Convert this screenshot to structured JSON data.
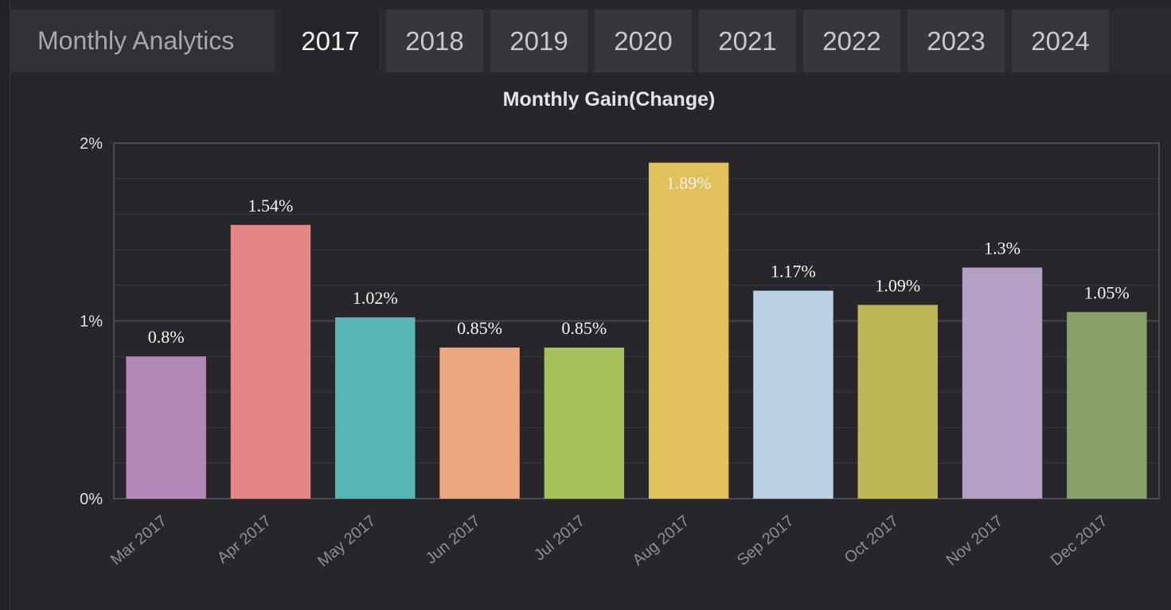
{
  "header": {
    "title": "Monthly Analytics",
    "tabs": [
      {
        "label": "2017",
        "active": true
      },
      {
        "label": "2018",
        "active": false
      },
      {
        "label": "2019",
        "active": false
      },
      {
        "label": "2020",
        "active": false
      },
      {
        "label": "2021",
        "active": false
      },
      {
        "label": "2022",
        "active": false
      },
      {
        "label": "2023",
        "active": false
      },
      {
        "label": "2024",
        "active": false
      }
    ]
  },
  "chart_data": {
    "type": "bar",
    "title": "Monthly Gain(Change)",
    "xlabel": "",
    "ylabel": "",
    "categories": [
      "Mar 2017",
      "Apr 2017",
      "May 2017",
      "Jun 2017",
      "Jul 2017",
      "Aug 2017",
      "Sep 2017",
      "Oct 2017",
      "Nov 2017",
      "Dec 2017"
    ],
    "values": [
      0.8,
      1.54,
      1.02,
      0.85,
      0.85,
      1.89,
      1.17,
      1.09,
      1.3,
      1.05
    ],
    "data_labels": [
      "0.8%",
      "1.54%",
      "1.02%",
      "0.85%",
      "0.85%",
      "1.89%",
      "1.17%",
      "1.09%",
      "1.3%",
      "1.05%"
    ],
    "yticks": [
      0,
      1,
      2
    ],
    "ytick_labels": [
      "0%",
      "1%",
      "2%"
    ],
    "ylim": [
      0,
      2
    ],
    "grid": true,
    "colors": [
      "#b488b8",
      "#e48784",
      "#58b4b5",
      "#eaa880",
      "#a8c05c",
      "#e2c05c",
      "#bbd2e6",
      "#bcb654",
      "#b4a0c4",
      "#8aa06a"
    ],
    "gridline_color": "#3a3a40",
    "axis_color": "#4a4a50"
  }
}
